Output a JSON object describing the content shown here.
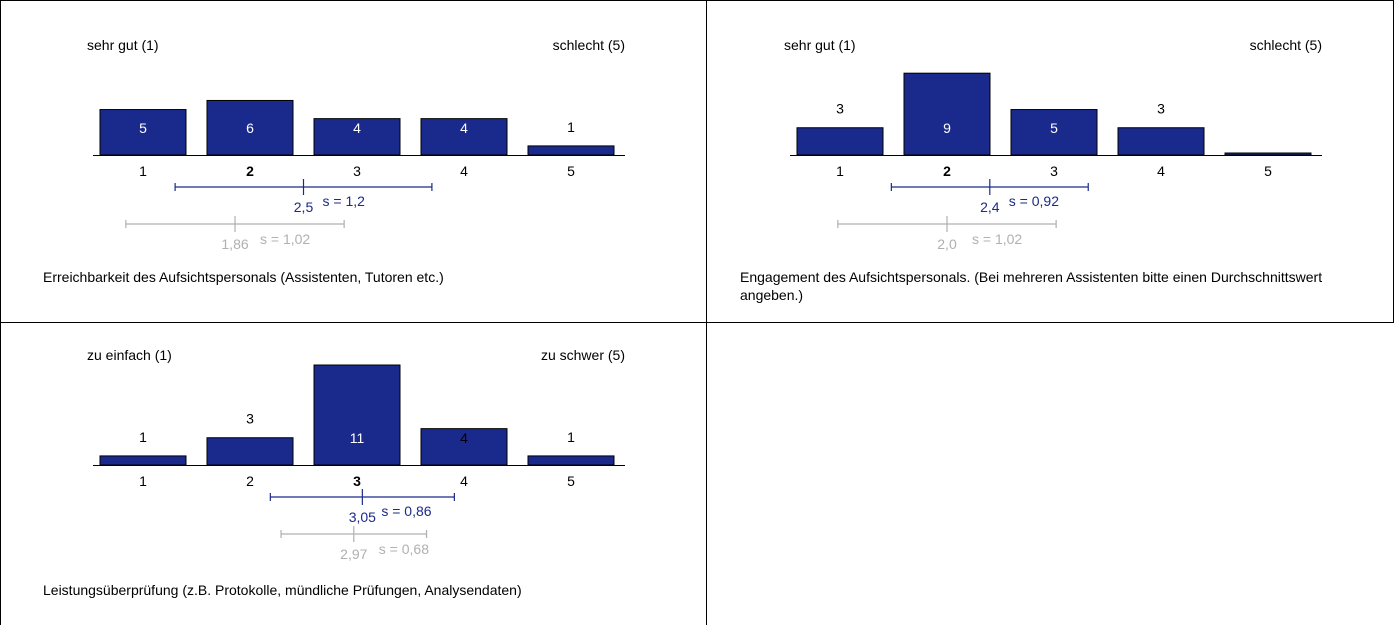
{
  "charts": [
    {
      "label_left": "sehr gut (1)",
      "label_right": "schlecht (5)",
      "caption": "Erreichbarkeit des Aufsichtspersonals (Assistenten, Tutoren etc.)",
      "counts": [
        5,
        6,
        4,
        4,
        1
      ],
      "count_colors": [
        "#ffffff",
        "#ffffff",
        "#ffffff",
        "#ffffff",
        "#000000"
      ],
      "ticks": [
        "1",
        "2",
        "3",
        "4",
        "5"
      ],
      "bold_tick": "2",
      "mean": 2.5,
      "sd": 1.2,
      "mean_label": "2,5",
      "sd_label": "s = 1,2",
      "ref_mean": 1.86,
      "ref_sd": 1.02,
      "ref_mean_label": "1,86",
      "ref_sd_label": "s = 1,02"
    },
    {
      "label_left": "sehr gut (1)",
      "label_right": "schlecht (5)",
      "caption": "Engagement des Aufsichtspersonals. (Bei mehreren Assistenten bitte einen Durchschnittswert angeben.)",
      "counts": [
        3,
        9,
        5,
        3,
        0
      ],
      "count_colors": [
        "#000000",
        "#ffffff",
        "#ffffff",
        "#000000",
        "#000000"
      ],
      "ticks": [
        "1",
        "2",
        "3",
        "4",
        "5"
      ],
      "bold_tick": "2",
      "mean": 2.4,
      "sd": 0.92,
      "mean_label": "2,4",
      "sd_label": "s = 0,92",
      "ref_mean": 2.0,
      "ref_sd": 1.02,
      "ref_mean_label": "2,0",
      "ref_sd_label": "s = 1,02"
    },
    {
      "label_left": "zu einfach (1)",
      "label_right": "zu schwer (5)",
      "caption": "Leistungsüberprüfung (z.B. Protokolle, mündliche Prüfungen, Analysendaten)",
      "counts": [
        1,
        3,
        11,
        4,
        1
      ],
      "count_colors": [
        "#000000",
        "#000000",
        "#ffffff",
        "#000000",
        "#000000"
      ],
      "ticks": [
        "1",
        "2",
        "3",
        "4",
        "5"
      ],
      "bold_tick": "3",
      "mean": 3.05,
      "sd": 0.86,
      "mean_label": "3,05",
      "sd_label": "s = 0,86",
      "ref_mean": 2.97,
      "ref_sd": 0.68,
      "ref_mean_label": "2,97",
      "ref_sd_label": "s = 0,68"
    }
  ],
  "chart_data": [
    {
      "type": "bar",
      "categories": [
        "1",
        "2",
        "3",
        "4",
        "5"
      ],
      "values": [
        5,
        6,
        4,
        4,
        1
      ],
      "title": "Erreichbarkeit des Aufsichtspersonals (Assistenten, Tutoren etc.)",
      "mean": 2.5,
      "sd": 1.2,
      "reference_mean": 1.86,
      "reference_sd": 1.02
    },
    {
      "type": "bar",
      "categories": [
        "1",
        "2",
        "3",
        "4",
        "5"
      ],
      "values": [
        3,
        9,
        5,
        3,
        0
      ],
      "title": "Engagement des Aufsichtspersonals. (Bei mehreren Assistenten bitte einen Durchschnittswert angeben.)",
      "mean": 2.4,
      "sd": 0.92,
      "reference_mean": 2.0,
      "reference_sd": 1.02
    },
    {
      "type": "bar",
      "categories": [
        "1",
        "2",
        "3",
        "4",
        "5"
      ],
      "values": [
        1,
        3,
        11,
        4,
        1
      ],
      "title": "Leistungsüberprüfung (z.B. Protokolle, mündliche Prüfungen, Analysendaten)",
      "mean": 3.05,
      "sd": 0.86,
      "reference_mean": 2.97,
      "reference_sd": 0.68
    }
  ],
  "colors": {
    "bar": "#1a2a8c",
    "mean": "#1a2a8c",
    "reference": "#b0b0b0",
    "border": "#000000"
  }
}
